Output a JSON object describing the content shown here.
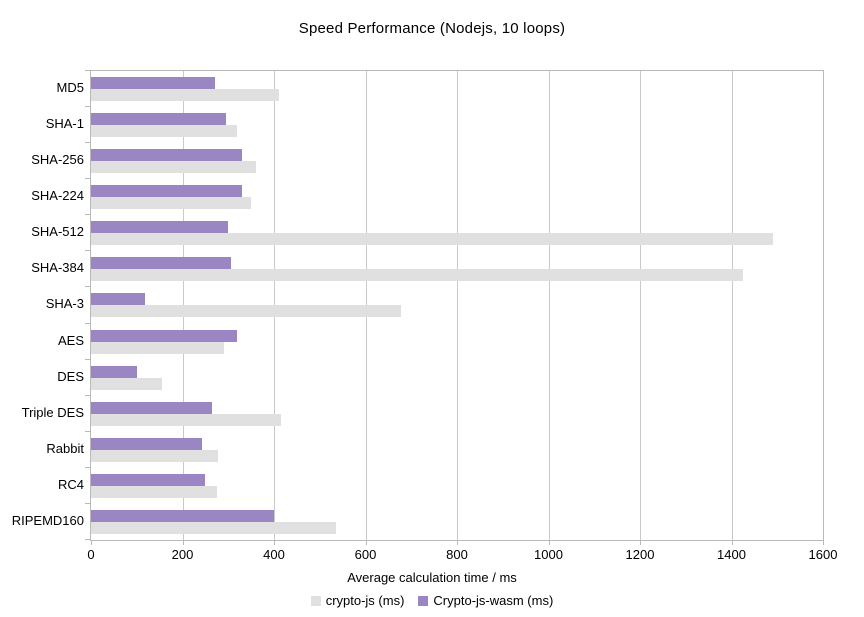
{
  "chart_data": {
    "type": "bar",
    "orientation": "horizontal",
    "title": "Speed Performance (Nodejs, 10 loops)",
    "xlabel": "Average calculation time / ms",
    "categories": [
      "MD5",
      "SHA-1",
      "SHA-256",
      "SHA-224",
      "SHA-512",
      "SHA-384",
      "SHA-3",
      "AES",
      "DES",
      "Triple DES",
      "Rabbit",
      "RC4",
      "RIPEMD160"
    ],
    "series": [
      {
        "name": "crypto-js (ms)",
        "color": "#e0e0e0",
        "values": [
          410,
          320,
          360,
          350,
          1490,
          1425,
          678,
          290,
          155,
          415,
          278,
          275,
          535
        ]
      },
      {
        "name": "Crypto-js-wasm (ms)",
        "color": "#9a86c2",
        "values": [
          270,
          295,
          330,
          330,
          300,
          307,
          118,
          320,
          100,
          265,
          243,
          250,
          400
        ]
      }
    ],
    "xlim": [
      0,
      1600
    ],
    "x_tick_step": 200,
    "grid": "vertical",
    "legend_position": "bottom",
    "colors": {
      "gridline": "#c9c9c9",
      "axis": "#b9b9b9",
      "text": "#000000",
      "background": "#ffffff"
    }
  }
}
